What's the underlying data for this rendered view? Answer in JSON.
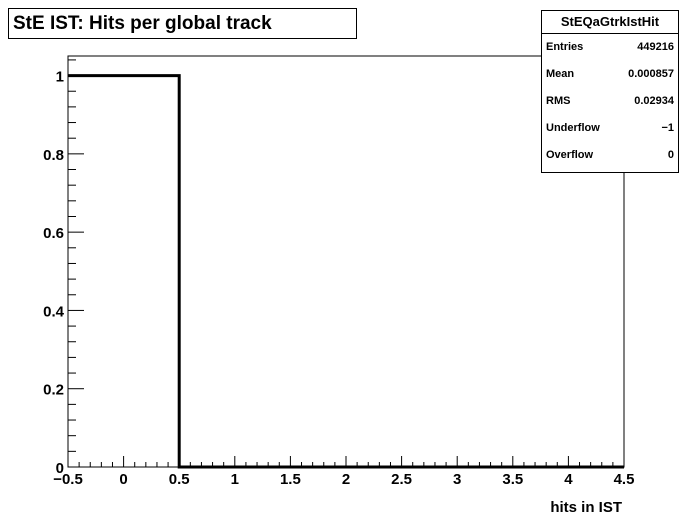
{
  "title": "StE IST: Hits per global track",
  "stats": {
    "name": "StEQaGtrkIstHit",
    "rows": [
      {
        "label": "Entries",
        "value": "449216"
      },
      {
        "label": "Mean",
        "value": "0.000857"
      },
      {
        "label": "RMS",
        "value": "0.02934"
      },
      {
        "label": "Underflow",
        "value": "−1"
      },
      {
        "label": "Overflow",
        "value": "0"
      }
    ]
  },
  "chart_data": {
    "type": "histogram",
    "title": "StE IST: Hits per global track",
    "xlabel": "hits in IST",
    "ylabel": "",
    "xlim": [
      -0.5,
      4.5
    ],
    "ylim": [
      0,
      1.05
    ],
    "x_ticks": [
      -0.5,
      0,
      0.5,
      1,
      1.5,
      2,
      2.5,
      3,
      3.5,
      4,
      4.5
    ],
    "x_tick_labels": [
      "−0.5",
      "0",
      "0.5",
      "1",
      "1.5",
      "2",
      "2.5",
      "3",
      "3.5",
      "4",
      "4.5"
    ],
    "y_ticks": [
      0,
      0.2,
      0.4,
      0.6,
      0.8,
      1
    ],
    "y_tick_labels": [
      "0",
      "0.2",
      "0.4",
      "0.6",
      "0.8",
      "1"
    ],
    "bins": [
      {
        "low": -0.5,
        "high": 0.5,
        "value": 1
      },
      {
        "low": 0.5,
        "high": 4.5,
        "value": 0
      }
    ],
    "grid": false,
    "legend": "none"
  }
}
